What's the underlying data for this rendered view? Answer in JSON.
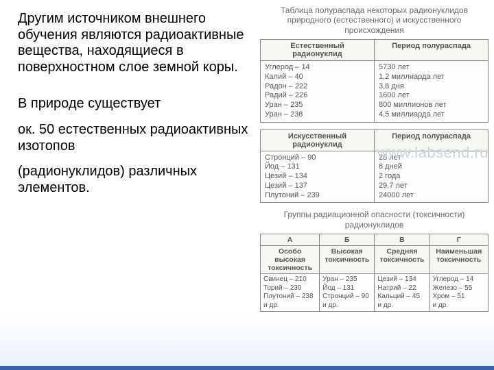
{
  "left": {
    "p1": "Другим источником внешнего обучения являются радиоактивные вещества, находящиеся в поверхностном слое земной коры.",
    "p2": "В природе существует",
    "p3": "ок. 50 естественных радиоактивных изотопов",
    "p4": "(радионуклидов) различных элементов."
  },
  "watermark": "www.labsend.ru",
  "caption1": "Таблица полураспада некоторых радионуклидов природного (естественного) и искусственного происхождения",
  "table1": {
    "head": [
      "Естественный радионуклид",
      "Период полураспада"
    ],
    "rows": [
      [
        "Углерод – 14",
        "5730 лет"
      ],
      [
        "Калий – 40",
        "1,2 миллиарда лет"
      ],
      [
        "Радон – 222",
        "3,8 дня"
      ],
      [
        "Радий – 226",
        "1600 лет"
      ],
      [
        "Уран – 235",
        "800 миллионов лет"
      ],
      [
        "Уран – 238",
        "4,5 миллиарда лет"
      ]
    ]
  },
  "table2": {
    "head": [
      "Искусственный радионуклид",
      "Период полураспада"
    ],
    "rows": [
      [
        "Стронций – 90",
        "28 лет"
      ],
      [
        "Йод – 131",
        "8 дней"
      ],
      [
        "Цезий – 134",
        "2 года"
      ],
      [
        "Цезий – 137",
        "29,7 лет"
      ],
      [
        "Плутоний – 239",
        "24000 лет"
      ]
    ]
  },
  "caption2": "Группы радиационной опасности (токсичности) радионуклидов",
  "table3": {
    "letters": [
      "А",
      "Б",
      "В",
      "Г"
    ],
    "head": [
      "Особо высокая токсичность",
      "Высокая токсичность",
      "Средняя токсичность",
      "Наименьшая токсичность"
    ],
    "cols": [
      [
        "Свинец – 210",
        "Торий – 230",
        "Плутоний – 238",
        "и др."
      ],
      [
        "Уран – 235",
        "Йод – 131",
        "Стронций – 90",
        "и др."
      ],
      [
        "Цезий – 134",
        "Натрий – 22",
        "Кальций – 45",
        "и др."
      ],
      [
        "Углерод – 14",
        "Железо – 55",
        "Хром – 51",
        "и др."
      ]
    ]
  },
  "colors": {
    "text_body": "#000000",
    "table_text": "#555555",
    "caption_text": "#6a6a6a",
    "border": "#888888",
    "bg_table": "#fdfdfb",
    "accent": "#3a62a8",
    "watermark": "#c8d4df",
    "grad_bottom": "#e8f0fb"
  }
}
